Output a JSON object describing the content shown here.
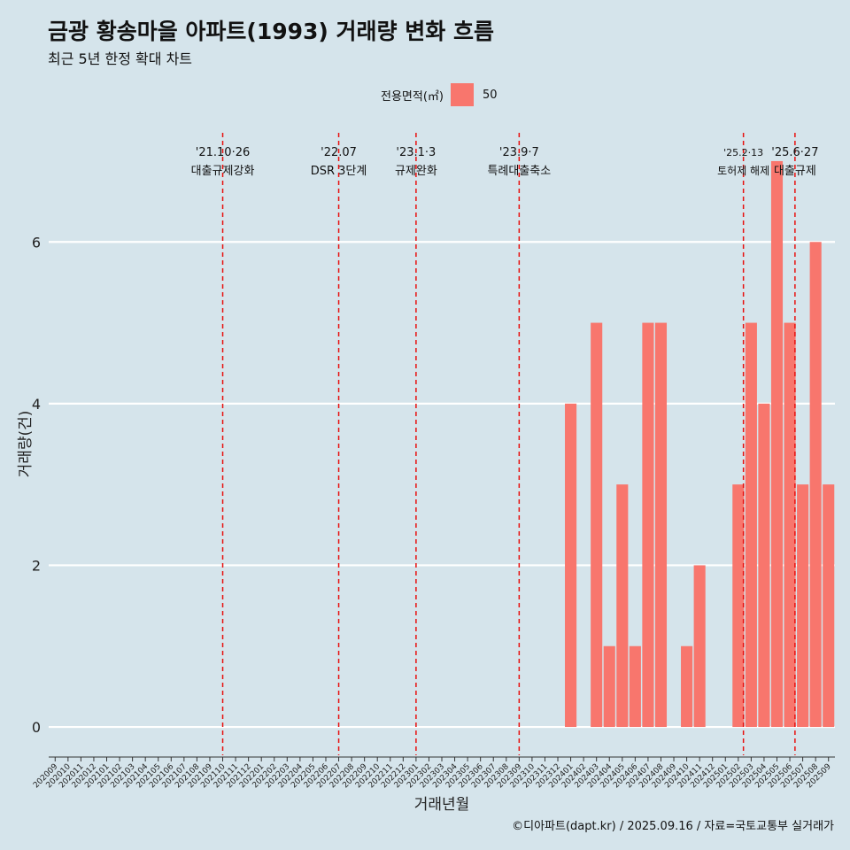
{
  "title": "금광 황송마을 아파트(1993) 거래량 변화 흐름",
  "subtitle": "최근 5년 한정 확대 차트",
  "caption": "©디아파트(dapt.kr) / 2025.09.16 / 자료=국토교통부 실거래가",
  "legend": {
    "title": "전용면적(㎡)",
    "entries": [
      "50"
    ]
  },
  "colors": {
    "background": "#d5e4eb",
    "bar": "#f8766d",
    "grid": "#ffffff",
    "event_line": "#e8100e"
  },
  "chart_data": {
    "type": "bar",
    "xlabel": "거래년월",
    "ylabel": "거래량(건)",
    "ylim": [
      -0.35,
      7.35
    ],
    "yticks": [
      0,
      2,
      4,
      6
    ],
    "grid": true,
    "legend_position": "top",
    "categories": [
      "202009",
      "202010",
      "202011",
      "202012",
      "202101",
      "202102",
      "202103",
      "202104",
      "202105",
      "202106",
      "202107",
      "202108",
      "202109",
      "202110",
      "202111",
      "202112",
      "202201",
      "202202",
      "202203",
      "202204",
      "202205",
      "202206",
      "202207",
      "202208",
      "202209",
      "202210",
      "202211",
      "202212",
      "202301",
      "202302",
      "202303",
      "202304",
      "202305",
      "202306",
      "202307",
      "202308",
      "202309",
      "202310",
      "202311",
      "202312",
      "202401",
      "202402",
      "202403",
      "202404",
      "202405",
      "202406",
      "202407",
      "202408",
      "202409",
      "202410",
      "202411",
      "202412",
      "202501",
      "202502",
      "202503",
      "202504",
      "202505",
      "202506",
      "202507",
      "202508",
      "202509"
    ],
    "series": [
      {
        "name": "50",
        "values": [
          0,
          0,
          0,
          0,
          0,
          0,
          0,
          0,
          0,
          0,
          0,
          0,
          0,
          0,
          0,
          0,
          0,
          0,
          0,
          0,
          0,
          0,
          0,
          0,
          0,
          0,
          0,
          0,
          0,
          0,
          0,
          0,
          0,
          0,
          0,
          0,
          0,
          0,
          0,
          0,
          4,
          0,
          5,
          1,
          3,
          1,
          5,
          5,
          0,
          1,
          2,
          0,
          0,
          3,
          5,
          4,
          7,
          5,
          3,
          6,
          3
        ]
      }
    ],
    "events": [
      {
        "label": "'21.10·26",
        "sublabel": "대출규제강화",
        "x": "202110",
        "offset": 0
      },
      {
        "label": "'22.07",
        "sublabel": "DSR 3단계",
        "x": "202207",
        "offset": 0
      },
      {
        "label": "'23.1·3",
        "sublabel": "규제완화",
        "x": "202301",
        "offset": 0
      },
      {
        "label": "'23.9·7",
        "sublabel": "특례대출축소",
        "x": "202309",
        "offset": 0
      },
      {
        "label": "'25.2·13",
        "sublabel": "토허제 해제",
        "x": "202502",
        "offset": 0.4
      },
      {
        "label": "'25.6·27",
        "sublabel": "대출규제",
        "x": "202506",
        "offset": 0.4
      }
    ]
  }
}
